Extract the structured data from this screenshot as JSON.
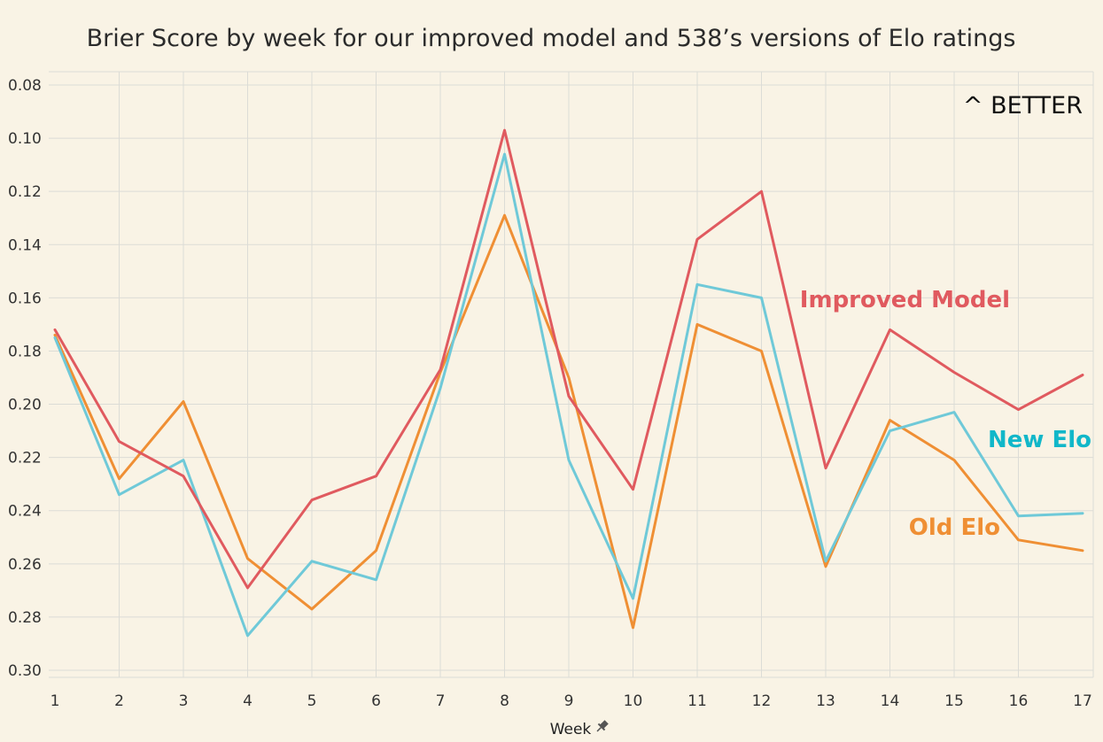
{
  "chart_data": {
    "type": "line",
    "title": "Brier Score by week for our improved model and 538’s versions of Elo ratings",
    "xlabel": "Week",
    "ylabel": "",
    "x": [
      1,
      2,
      3,
      4,
      5,
      6,
      7,
      8,
      9,
      10,
      11,
      12,
      13,
      14,
      15,
      16,
      17
    ],
    "x_tick_labels": [
      "1",
      "2",
      "3",
      "4",
      "5",
      "6",
      "7",
      "8",
      "9",
      "10",
      "11",
      "12",
      "13",
      "14",
      "15",
      "16",
      "17"
    ],
    "y_tick_labels": [
      "0.08",
      "0.10",
      "0.12",
      "0.14",
      "0.16",
      "0.18",
      "0.20",
      "0.22",
      "0.24",
      "0.26",
      "0.28",
      "0.30"
    ],
    "ylim": [
      0.075,
      0.302
    ],
    "y_reversed": true,
    "grid": true,
    "annotation": "^ BETTER",
    "series": [
      {
        "name": "Improved Model",
        "color": "#e05a5f",
        "values": [
          0.172,
          0.214,
          0.227,
          0.269,
          0.236,
          0.227,
          0.187,
          0.097,
          0.197,
          0.232,
          0.138,
          0.12,
          0.224,
          0.172,
          0.188,
          0.202,
          0.189
        ]
      },
      {
        "name": "New Elo",
        "color": "#6fc9d8",
        "values": [
          0.175,
          0.234,
          0.221,
          0.287,
          0.259,
          0.266,
          0.194,
          0.106,
          0.221,
          0.273,
          0.155,
          0.16,
          0.259,
          0.21,
          0.203,
          0.242,
          0.241
        ]
      },
      {
        "name": "Old Elo",
        "color": "#ef8f34",
        "values": [
          0.174,
          0.228,
          0.199,
          0.258,
          0.277,
          0.255,
          0.188,
          0.129,
          0.19,
          0.284,
          0.17,
          0.18,
          0.261,
          0.206,
          0.221,
          0.251,
          0.255
        ]
      }
    ],
    "series_label_colors": {
      "Improved Model": "#e05a5f",
      "New Elo": "#11b7c9",
      "Old Elo": "#ef8f34"
    }
  }
}
